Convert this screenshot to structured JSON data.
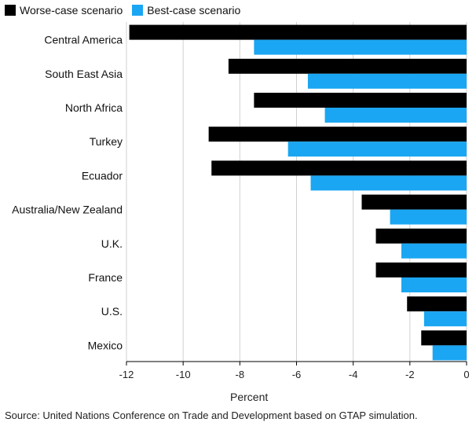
{
  "chart_data": {
    "type": "bar",
    "orientation": "horizontal",
    "categories": [
      "Central America",
      "South East Asia",
      "North Africa",
      "Turkey",
      "Ecuador",
      "Australia/New Zealand",
      "U.K.",
      "France",
      "U.S.",
      "Mexico"
    ],
    "series": [
      {
        "name": "Worse-case scenario",
        "color": "#000000",
        "values": [
          -11.9,
          -8.4,
          -7.5,
          -9.1,
          -9.0,
          -3.7,
          -3.2,
          -3.2,
          -2.1,
          -1.6
        ]
      },
      {
        "name": "Best-case scenario",
        "color": "#1aa6f2",
        "values": [
          -7.5,
          -5.6,
          -5.0,
          -6.3,
          -5.5,
          -2.7,
          -2.3,
          -2.3,
          -1.5,
          -1.2
        ]
      }
    ],
    "x_ticks": [
      "-12",
      "-10",
      "-8",
      "-6",
      "-4",
      "-2",
      "0"
    ],
    "xlabel": "Percent",
    "xlim": [
      -12,
      0
    ],
    "grid": true,
    "legend_position": "top-left",
    "source": "Source: United Nations Conference on Trade and Development based on GTAP simulation."
  }
}
